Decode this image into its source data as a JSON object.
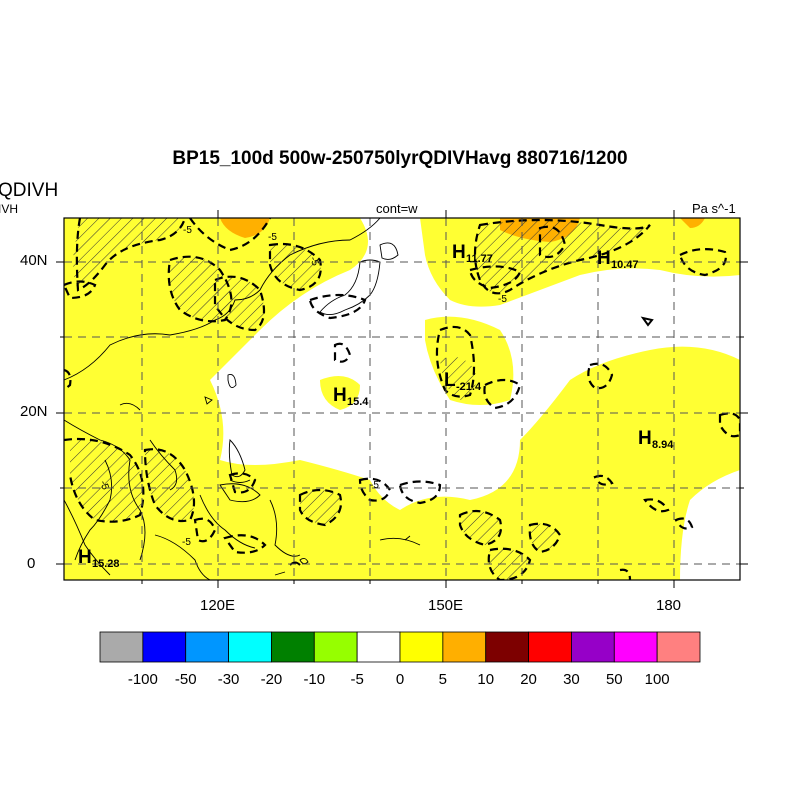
{
  "map": {
    "title": "BP15_100d 500w-250750lyrQDIVHavg  880716/1200",
    "left_label_top": "QDIVH",
    "left_label_bottom": "IVH",
    "center_label": "cont=w",
    "units_label": "Pa s^-1",
    "lat_labels": [
      "40N",
      "20N",
      "0"
    ],
    "lon_labels": [
      "120E",
      "150E",
      "180"
    ],
    "pressure_centers": [
      {
        "type": "H",
        "value": "11.77"
      },
      {
        "type": "H",
        "value": "10.47"
      },
      {
        "type": "L",
        "value": "-21.4"
      },
      {
        "type": "H",
        "value": "15.4"
      },
      {
        "type": "H",
        "value": "8.94"
      },
      {
        "type": "H",
        "value": "15.28"
      }
    ],
    "contour_labels": [
      "-5",
      "-5",
      "-5",
      "-5",
      "-5",
      "-5",
      "-5"
    ]
  },
  "colorbar": {
    "colors": [
      "#aaaaaa",
      "#0000ff",
      "#0096ff",
      "#00ffff",
      "#008000",
      "#96ff00",
      "#ffffff",
      "#ffff00",
      "#ffaf00",
      "#7d0000",
      "#ff0000",
      "#9600c8",
      "#ff00ff",
      "#ff8080"
    ],
    "labels": [
      "-100",
      "-50",
      "-30",
      "-20",
      "-10",
      "-5",
      "0",
      "5",
      "10",
      "20",
      "30",
      "50",
      "100"
    ]
  }
}
